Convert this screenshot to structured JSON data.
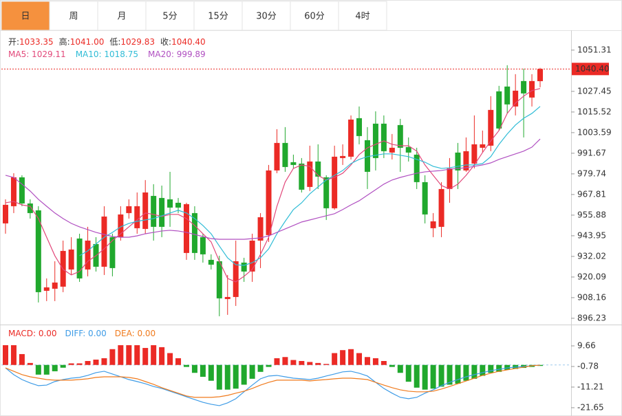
{
  "tabs": [
    {
      "label": "日",
      "active": true
    },
    {
      "label": "周"
    },
    {
      "label": "月"
    },
    {
      "label": "5分"
    },
    {
      "label": "15分"
    },
    {
      "label": "30分"
    },
    {
      "label": "60分"
    },
    {
      "label": "4时"
    }
  ],
  "chart_data": [
    {
      "type": "candlestick",
      "quote": [
        {
          "label": "开:",
          "value": "1033.35"
        },
        {
          "label": "高:",
          "value": "1041.00"
        },
        {
          "label": "低:",
          "value": "1029.83"
        },
        {
          "label": "收:",
          "value": "1040.40"
        }
      ],
      "up_color": "#eb2a25",
      "down_color": "#20a82d",
      "ylim": [
        893.4,
        1062.0
      ],
      "yticks": [
        1051.31,
        1027.45,
        1015.52,
        1003.59,
        991.67,
        979.74,
        967.81,
        955.88,
        943.95,
        932.02,
        920.09,
        908.16,
        896.23
      ],
      "last_price": {
        "value": 1040.4,
        "label": "1040.40"
      },
      "open": [
        951.1,
        961.04,
        977.74,
        962.63,
        958.65,
        912.12,
        913.32,
        914.51,
        924.45,
        942.35,
        924.45,
        939.17,
        926.04,
        943.14,
        943.14,
        957.06,
        948.31,
        947.91,
        967.0,
        965.81,
        965.02,
        963.03,
        934.0,
        957.06,
        943.14,
        930.02,
        929.22,
        907.35,
        908.54,
        928.43,
        923.26,
        941.15,
        944.33,
        981.72,
        997.63,
        986.49,
        985.69,
        972.18,
        986.89,
        977.74,
        959.85,
        988.88,
        989.67,
        1011.95,
        999.22,
        1008.77,
        1008.77,
        992.06,
        1007.97,
        995.24,
        990.86,
        974.96,
        948.31,
        949.11,
        970.98,
        992.06,
        981.72,
        985.69,
        994.84,
        996.04,
        1027.46,
        1030.24,
        1018.71,
        1033.42,
        1023.88,
        1033.35
      ],
      "high": [
        965.02,
        980.13,
        978.94,
        965.02,
        961.04,
        919.28,
        929.22,
        941.15,
        943.14,
        945.13,
        949.11,
        943.14,
        961.04,
        945.13,
        961.04,
        965.02,
        968.99,
        976.15,
        973.77,
        972.97,
        980.92,
        965.81,
        963.03,
        961.04,
        945.13,
        933.2,
        932.4,
        921.27,
        941.15,
        931.21,
        945.13,
        957.06,
        984.9,
        1005.58,
        1006.78,
        990.86,
        988.88,
        996.04,
        996.83,
        978.94,
        996.04,
        996.83,
        1013.54,
        1018.71,
        1006.78,
        1015.92,
        1013.54,
        1002.8,
        1011.55,
        1000.81,
        994.84,
        978.94,
        957.06,
        974.96,
        988.88,
        997.63,
        1000.81,
        1013.54,
        1004.79,
        1024.67,
        1030.64,
        1042.57,
        1037.4,
        1040.58,
        1037.4,
        1041
      ],
      "low": [
        945.13,
        957.06,
        961.04,
        953.88,
        905.36,
        906.16,
        906.16,
        911.33,
        921.27,
        917.29,
        920.48,
        923.26,
        921.27,
        920.48,
        941.15,
        953.88,
        945.13,
        945.13,
        941.15,
        943.14,
        949.11,
        957.06,
        930.02,
        930.02,
        928.43,
        924.45,
        897.41,
        898.21,
        903.37,
        917.29,
        917.29,
        925.25,
        940.36,
        980.13,
        980.92,
        982.91,
        968.99,
        969.79,
        970.98,
        953.09,
        959.05,
        984.9,
        988.08,
        996.83,
        970.98,
        981.72,
        988.88,
        988.08,
        980.92,
        986.89,
        970.98,
        951.1,
        943.14,
        943.14,
        963.03,
        970.98,
        980.92,
        982.91,
        992.06,
        992.85,
        1004.79,
        1014.73,
        1013.54,
        1000.81,
        1018.71,
        1029.83
      ],
      "close": [
        961.84,
        977.74,
        962.63,
        957.06,
        911.33,
        914.11,
        916.9,
        935.19,
        935.99,
        919.28,
        941.15,
        926.04,
        955.07,
        925.25,
        956.27,
        961.04,
        961.04,
        968.99,
        949.11,
        949.11,
        960.24,
        960.24,
        962.23,
        934.0,
        933.2,
        927.24,
        907.75,
        908.54,
        929.22,
        923.26,
        941.15,
        954.68,
        981.72,
        997.63,
        983.71,
        984.9,
        970.59,
        986.89,
        978.14,
        959.85,
        989.67,
        990.07,
        1011.15,
        1001.61,
        980.92,
        988.88,
        992.85,
        994.84,
        994.84,
        992.06,
        974.96,
        956.27,
        952.29,
        970.98,
        982.91,
        981.72,
        992.85,
        996.83,
        996.83,
        1016.72,
        1005.98,
        1019.9,
        1027.85,
        1026.26,
        1033.42,
        1040.4
      ],
      "lines": [
        {
          "legend": "MA5: 1029.11",
          "color": "#e2487a",
          "values": [
            963.0,
            963.8,
            961.8,
            961.0,
            953.9,
            943.1,
            932.4,
            924.5,
            921.3,
            923.3,
            929.2,
            932.4,
            936.4,
            941.2,
            945.1,
            949.1,
            953.1,
            957.1,
            956.3,
            955.1,
            956.3,
            956.3,
            953.9,
            949.9,
            945.1,
            940.4,
            929.2,
            919.3,
            917.3,
            920.5,
            924.5,
            933.2,
            943.1,
            961.0,
            975.0,
            982.9,
            984.9,
            984.1,
            978.9,
            976.2,
            977.7,
            980.1,
            984.9,
            990.9,
            994.8,
            996.8,
            998.8,
            996.8,
            996.0,
            996.0,
            992.9,
            984.9,
            978.9,
            973.0,
            971.0,
            973.8,
            978.9,
            984.9,
            992.1,
            998.8,
            1004.8,
            1014.7,
            1020.7,
            1024.7,
            1027.9,
            1029.11
          ]
        },
        {
          "legend": "MA10: 1018.75",
          "color": "#2fbcd6",
          "values": [
            null,
            null,
            null,
            null,
            null,
            null,
            null,
            null,
            null,
            932.4,
            935.2,
            939.2,
            943.1,
            945.9,
            949.1,
            951.1,
            952.3,
            953.1,
            953.9,
            955.5,
            957.1,
            958.7,
            957.1,
            953.9,
            949.9,
            945.1,
            938.0,
            931.2,
            927.2,
            926.8,
            928.4,
            931.2,
            936.4,
            945.1,
            952.3,
            959.1,
            963.0,
            968.2,
            972.2,
            976.2,
            978.9,
            981.7,
            985.7,
            988.1,
            989.7,
            990.5,
            991.3,
            991.3,
            990.5,
            989.7,
            988.1,
            986.5,
            984.1,
            982.9,
            983.3,
            984.1,
            984.9,
            984.9,
            985.7,
            989.7,
            996.8,
            1002.8,
            1008.0,
            1011.9,
            1014.7,
            1018.75
          ]
        },
        {
          "legend": "MA20: 999.89",
          "color": "#b04fc1",
          "values": [
            978.9,
            977.7,
            973.8,
            969.8,
            965.0,
            961.0,
            957.1,
            953.9,
            951.1,
            949.1,
            947.5,
            945.9,
            944.7,
            943.5,
            943.1,
            943.1,
            943.9,
            945.1,
            945.9,
            946.7,
            947.1,
            946.7,
            945.9,
            944.7,
            943.5,
            942.3,
            941.9,
            941.9,
            941.9,
            941.9,
            942.3,
            942.7,
            943.9,
            945.9,
            947.9,
            949.9,
            951.9,
            953.1,
            954.3,
            955.5,
            956.7,
            959.1,
            961.8,
            964.2,
            967.4,
            970.6,
            973.8,
            976.2,
            977.7,
            978.9,
            980.1,
            980.9,
            981.3,
            981.7,
            982.5,
            982.9,
            983.3,
            984.1,
            984.9,
            986.1,
            988.1,
            989.7,
            991.3,
            992.9,
            995.2,
            999.89
          ]
        }
      ]
    },
    {
      "type": "macd",
      "legend": [
        {
          "text": "MACD: 0.00",
          "color": "#eb2a25"
        },
        {
          "text": "DIFF: 0.00",
          "color": "#3d9be6"
        },
        {
          "text": "DEA: 0.00",
          "color": "#f07a1c"
        }
      ],
      "ylim": [
        -25.5,
        19.06
      ],
      "yticks": [
        9.66,
        -0.78,
        -11.21,
        -21.65
      ],
      "up_color": "#eb2a25",
      "down_color": "#20a82d",
      "histogram": [
        10.0,
        10.0,
        5.5,
        1.0,
        -4.9,
        -4.9,
        -3.2,
        -1.4,
        0.8,
        0.8,
        2.0,
        2.7,
        3.4,
        8.0,
        10.0,
        10.0,
        10.0,
        8.6,
        10.0,
        9.0,
        6.0,
        3.4,
        -1.0,
        -4.0,
        -6.0,
        -8.0,
        -12.5,
        -12.5,
        -12.0,
        -10.0,
        -7.0,
        -3.5,
        -1.0,
        3.4,
        4.0,
        2.5,
        2.0,
        1.5,
        1.0,
        0.5,
        6.0,
        7.5,
        8.0,
        6.0,
        4.0,
        3.4,
        2.0,
        -1.0,
        -4.0,
        -8.5,
        -11.5,
        -12.5,
        -12.0,
        -11.0,
        -10.0,
        -9.5,
        -8.0,
        -7.0,
        -5.5,
        -4.0,
        -3.5,
        -2.5,
        -2.0,
        -1.5,
        -1.0,
        -0.5
      ],
      "lines": [
        {
          "color": "#3d9be6",
          "values": [
            -1.5,
            -4.9,
            -7.4,
            -9.1,
            -10.5,
            -10.2,
            -8.4,
            -7.4,
            -6.7,
            -6.3,
            -5.3,
            -3.9,
            -3.2,
            -4.6,
            -6.0,
            -7.4,
            -8.4,
            -9.5,
            -10.9,
            -11.9,
            -13.3,
            -14.7,
            -16.1,
            -17.5,
            -18.9,
            -19.9,
            -20.6,
            -19.2,
            -17.1,
            -13.6,
            -10.2,
            -7.0,
            -5.6,
            -5.3,
            -6.0,
            -6.7,
            -7.0,
            -7.4,
            -6.7,
            -5.6,
            -4.6,
            -3.5,
            -3.2,
            -4.2,
            -5.6,
            -8.8,
            -11.9,
            -14.3,
            -16.4,
            -17.1,
            -16.4,
            -14.3,
            -12.6,
            -10.5,
            -8.8,
            -7.4,
            -6.0,
            -4.9,
            -3.9,
            -2.9,
            -2.2,
            -1.5,
            -1.1,
            -0.8,
            -0.4,
            -0.1
          ]
        },
        {
          "color": "#f07a1c",
          "values": [
            -1.5,
            -3.2,
            -4.9,
            -6.0,
            -6.7,
            -7.4,
            -7.7,
            -7.7,
            -7.7,
            -7.4,
            -7.0,
            -6.3,
            -6.0,
            -6.0,
            -6.0,
            -6.3,
            -7.0,
            -8.4,
            -9.8,
            -11.5,
            -12.9,
            -14.3,
            -15.7,
            -16.4,
            -16.4,
            -16.4,
            -16.1,
            -15.4,
            -14.3,
            -13.3,
            -11.9,
            -10.2,
            -8.8,
            -7.7,
            -7.7,
            -7.7,
            -7.7,
            -8.1,
            -7.7,
            -7.4,
            -7.0,
            -6.7,
            -6.7,
            -7.0,
            -7.4,
            -8.8,
            -10.2,
            -11.5,
            -12.6,
            -13.3,
            -13.6,
            -13.6,
            -13.3,
            -12.2,
            -10.9,
            -9.5,
            -8.1,
            -6.7,
            -5.3,
            -4.2,
            -3.2,
            -2.5,
            -1.8,
            -1.1,
            -0.4,
            -0.1
          ]
        }
      ]
    }
  ]
}
